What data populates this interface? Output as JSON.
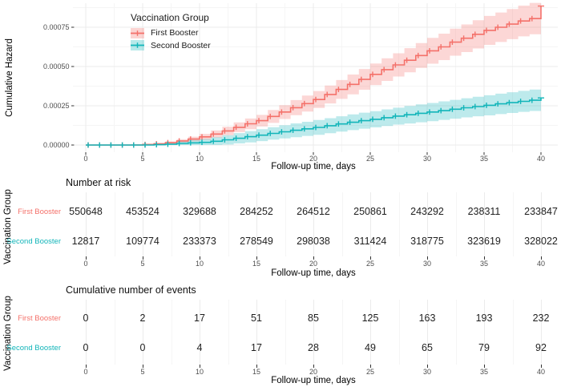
{
  "chart_data": {
    "type": "line",
    "subtype": "step-cumulative-hazard-with-confidence-bands",
    "xlabel": "Follow-up time, days",
    "ylabel": "Cumulative Hazard",
    "legend_title": "Vaccination Group",
    "xlim": [
      0,
      40
    ],
    "ylim": [
      0,
      0.0009
    ],
    "x_ticks": [
      0,
      5,
      10,
      15,
      20,
      25,
      30,
      35,
      40
    ],
    "y_ticks": [
      {
        "v": 0,
        "label": "0.00000"
      },
      {
        "v": 25,
        "label": "0.00025"
      },
      {
        "v": 50,
        "label": "0.00050"
      },
      {
        "v": 75,
        "label": "0.00075"
      }
    ],
    "grid": "on",
    "legend_position": "top-inside-left",
    "value_unit": 1e-05,
    "point_format": "[day, cumulative_hazard(1e-5), ci_halfwidth(1e-5)]",
    "series": [
      {
        "name": "First Booster",
        "color": "#F4716A",
        "band_opacity": 0.28,
        "points": [
          [
            0,
            0,
            0
          ],
          [
            1,
            0,
            0
          ],
          [
            2,
            0,
            0
          ],
          [
            3,
            0,
            0
          ],
          [
            4,
            0.05,
            0.1
          ],
          [
            5,
            0.36,
            0.3
          ],
          [
            6,
            0.8,
            0.5
          ],
          [
            7,
            1.5,
            0.8
          ],
          [
            8,
            2.6,
            1.1
          ],
          [
            9,
            3.8,
            1.5
          ],
          [
            10,
            5.2,
            1.9
          ],
          [
            11,
            7,
            2.3
          ],
          [
            12,
            9,
            2.7
          ],
          [
            13,
            11.3,
            3.1
          ],
          [
            14,
            13.5,
            3.4
          ],
          [
            15,
            15.5,
            3.7
          ],
          [
            16,
            18.2,
            4.1
          ],
          [
            17,
            21,
            4.4
          ],
          [
            18,
            23.8,
            4.8
          ],
          [
            19,
            26.4,
            5.1
          ],
          [
            20,
            29,
            5.4
          ],
          [
            21,
            32.2,
            5.7
          ],
          [
            22,
            35.4,
            6
          ],
          [
            23,
            38.6,
            6.3
          ],
          [
            24,
            41.8,
            6.6
          ],
          [
            25,
            45,
            6.9
          ],
          [
            26,
            48,
            7.2
          ],
          [
            27,
            51,
            7.4
          ],
          [
            28,
            54,
            7.7
          ],
          [
            29,
            57,
            7.9
          ],
          [
            30,
            60,
            8.2
          ],
          [
            31,
            62.5,
            8.4
          ],
          [
            32,
            65.5,
            8.6
          ],
          [
            33,
            68,
            8.8
          ],
          [
            34,
            70.5,
            9
          ],
          [
            35,
            73,
            9.2
          ],
          [
            36,
            75,
            9.4
          ],
          [
            37,
            77,
            9.6
          ],
          [
            38,
            79,
            9.8
          ],
          [
            39,
            80.5,
            10
          ],
          [
            40,
            88.5,
            10.8
          ]
        ]
      },
      {
        "name": "Second Booster",
        "color": "#12B5B9",
        "band_opacity": 0.28,
        "points": [
          [
            0,
            0,
            0
          ],
          [
            1,
            0,
            0
          ],
          [
            2,
            0,
            0
          ],
          [
            3,
            0,
            0
          ],
          [
            4,
            0,
            0
          ],
          [
            5,
            0,
            0
          ],
          [
            6,
            0.2,
            0.4
          ],
          [
            7,
            0.5,
            0.8
          ],
          [
            8,
            1,
            1.4
          ],
          [
            9,
            1.4,
            1.8
          ],
          [
            10,
            1.7,
            2.2
          ],
          [
            11,
            2.4,
            2.6
          ],
          [
            12,
            3.3,
            3
          ],
          [
            13,
            4.3,
            3.3
          ],
          [
            14,
            5.3,
            3.6
          ],
          [
            15,
            6.3,
            3.8
          ],
          [
            16,
            7.4,
            4
          ],
          [
            17,
            8.4,
            4.2
          ],
          [
            18,
            9.4,
            4.4
          ],
          [
            19,
            10.3,
            4.5
          ],
          [
            20,
            11.2,
            4.7
          ],
          [
            21,
            12.3,
            4.8
          ],
          [
            22,
            13.4,
            4.9
          ],
          [
            23,
            14.5,
            5
          ],
          [
            24,
            15.5,
            5.1
          ],
          [
            25,
            16.4,
            5.2
          ],
          [
            26,
            17.4,
            5.3
          ],
          [
            27,
            18.4,
            5.4
          ],
          [
            28,
            19.3,
            5.6
          ],
          [
            29,
            20.2,
            5.7
          ],
          [
            30,
            21,
            5.8
          ],
          [
            31,
            21.9,
            5.9
          ],
          [
            32,
            22.8,
            6
          ],
          [
            33,
            23.7,
            6.1
          ],
          [
            34,
            24.5,
            6.2
          ],
          [
            35,
            25.3,
            6.4
          ],
          [
            36,
            26.2,
            6.5
          ],
          [
            37,
            27,
            6.6
          ],
          [
            38,
            27.8,
            6.7
          ],
          [
            39,
            28.5,
            6.8
          ],
          [
            40,
            30,
            7
          ]
        ]
      }
    ],
    "risk_table": {
      "title": "Number at risk",
      "ylabel": "Vaccination Group",
      "xlabel": "Follow-up time, days",
      "times": [
        0,
        5,
        10,
        15,
        20,
        25,
        30,
        35,
        40
      ],
      "rows": [
        {
          "name": "First Booster",
          "values": [
            550648,
            453524,
            329688,
            284252,
            264512,
            250861,
            243292,
            238311,
            233847
          ]
        },
        {
          "name": "Second Booster",
          "values": [
            12817,
            109774,
            233373,
            278549,
            298038,
            311424,
            318775,
            323619,
            328022
          ]
        }
      ]
    },
    "events_table": {
      "title": "Cumulative number of events",
      "ylabel": "Vaccination Group",
      "xlabel": "Follow-up time, days",
      "times": [
        0,
        5,
        10,
        15,
        20,
        25,
        30,
        35,
        40
      ],
      "rows": [
        {
          "name": "First Booster",
          "values": [
            0,
            2,
            17,
            51,
            85,
            125,
            163,
            193,
            232
          ]
        },
        {
          "name": "Second Booster",
          "values": [
            0,
            0,
            4,
            17,
            28,
            49,
            65,
            79,
            92
          ]
        }
      ]
    },
    "colors": {
      "grid_major": "#EBEBEB",
      "grid_minor": "#F5F5F5",
      "tick_text": "#4d4d4d",
      "axis_text": "#000000"
    }
  }
}
